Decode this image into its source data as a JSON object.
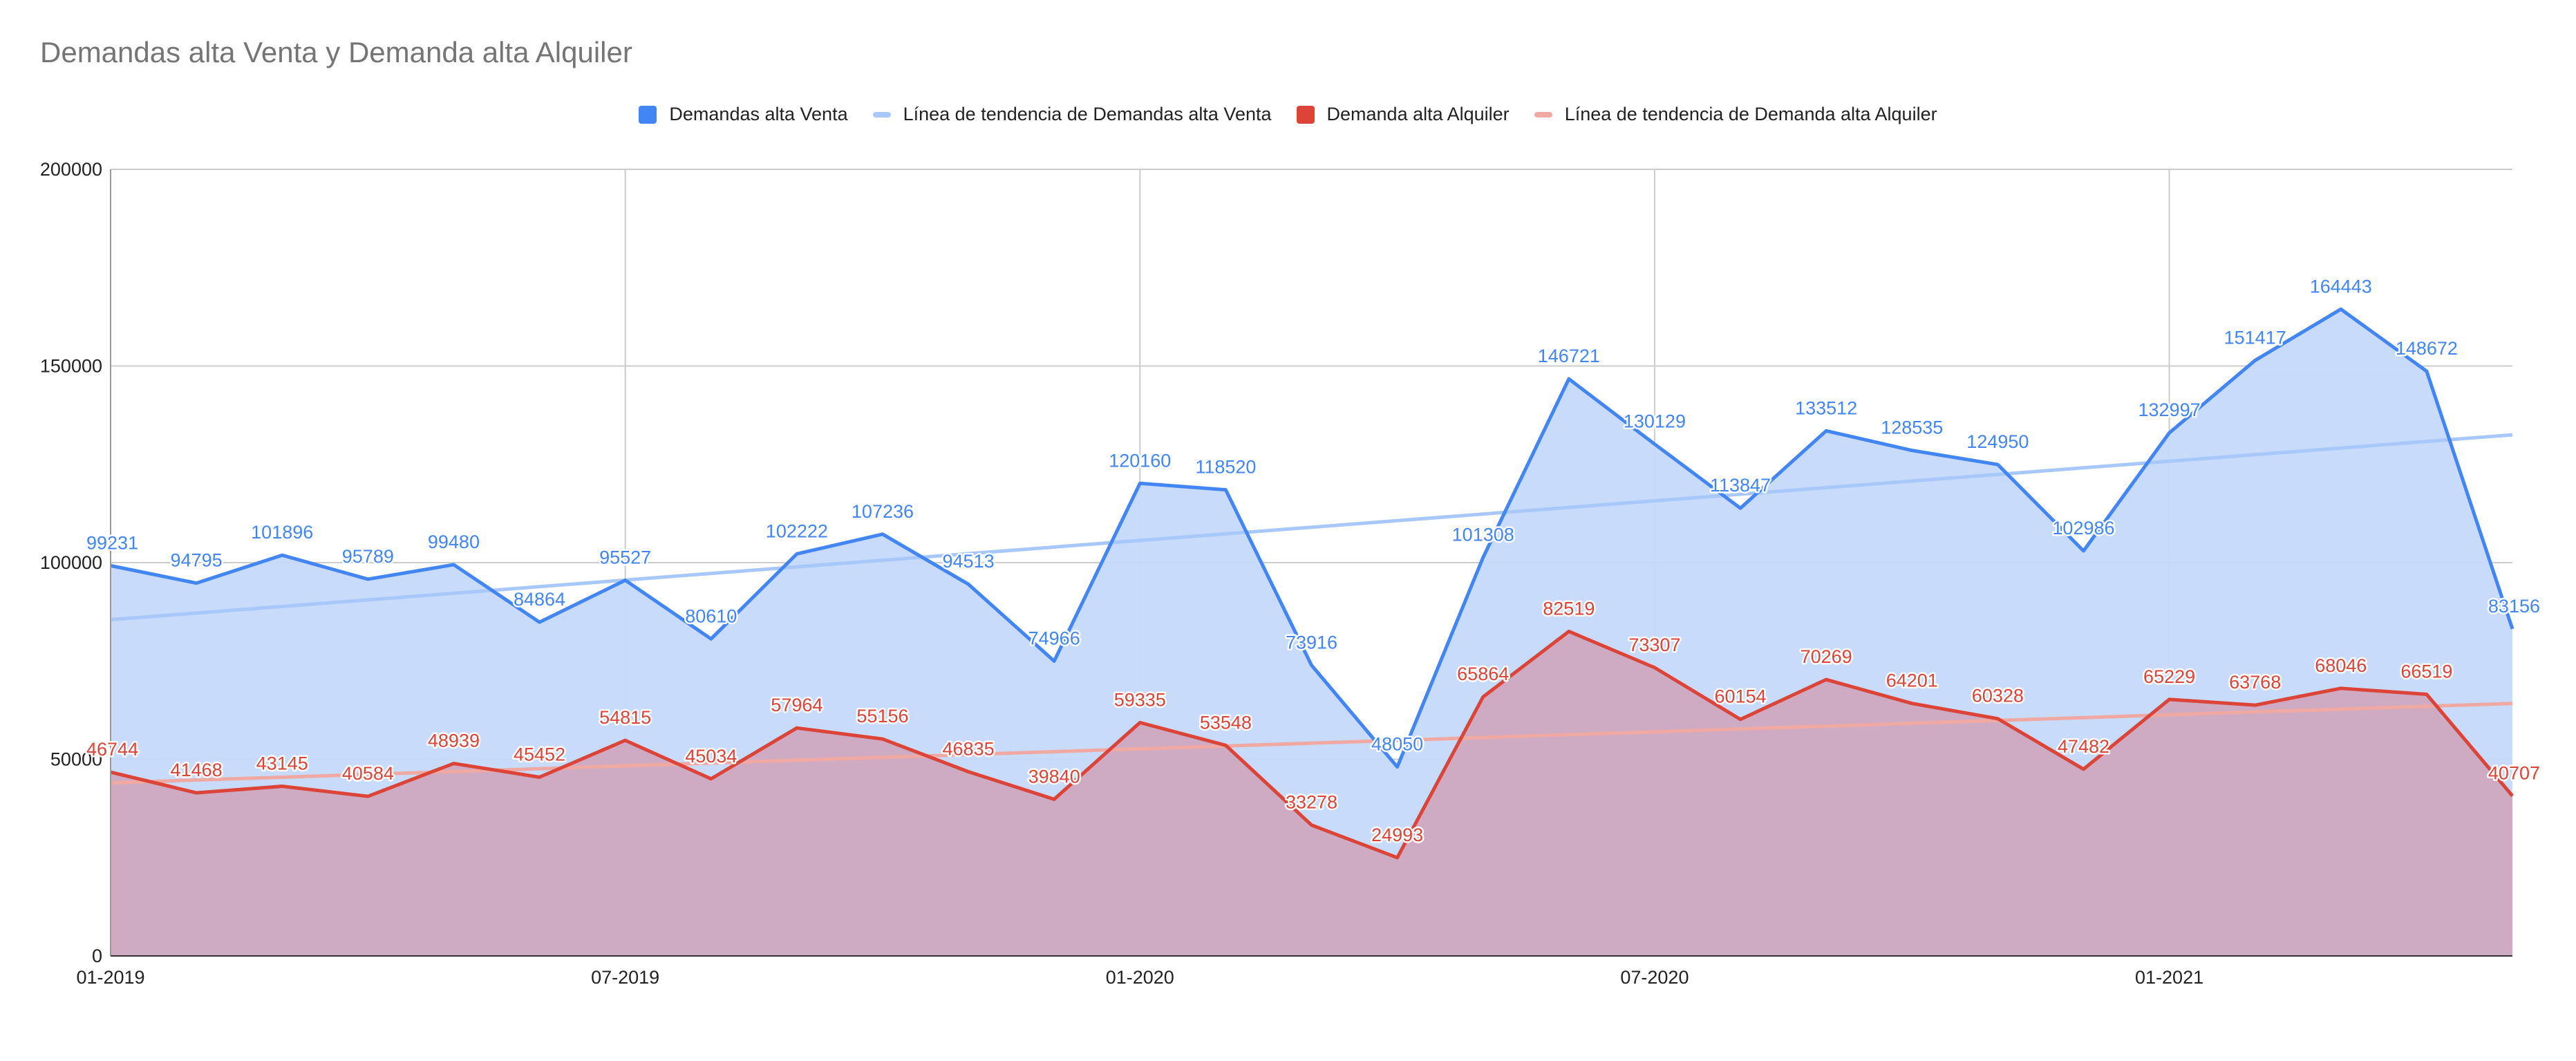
{
  "chart_data": {
    "type": "area",
    "title": "Demandas alta Venta y Demanda alta Alquiler",
    "legend_position": "top",
    "grid": true,
    "ylim": [
      0,
      200000
    ],
    "y_ticks": [
      "0",
      "50000",
      "100000",
      "150000",
      "200000"
    ],
    "y_tick_values": [
      0,
      50000,
      100000,
      150000,
      200000
    ],
    "x_ticks": [
      "01-2019",
      "07-2019",
      "01-2020",
      "07-2020",
      "01-2021"
    ],
    "x_tick_indices": [
      0,
      6,
      12,
      18,
      24
    ],
    "x": [
      "01-2019",
      "02-2019",
      "03-2019",
      "04-2019",
      "05-2019",
      "06-2019",
      "07-2019",
      "08-2019",
      "09-2019",
      "10-2019",
      "11-2019",
      "12-2019",
      "01-2020",
      "02-2020",
      "03-2020",
      "04-2020",
      "05-2020",
      "06-2020",
      "07-2020",
      "08-2020",
      "09-2020",
      "10-2020",
      "11-2020",
      "12-2020",
      "01-2021",
      "02-2021",
      "03-2021",
      "04-2021",
      "05-2021"
    ],
    "series": [
      {
        "name": "Demandas alta Venta",
        "color": "#4285f4",
        "fill": "#c6d9fb",
        "values": [
          99231,
          94795,
          101896,
          95789,
          99480,
          84864,
          95527,
          80610,
          102222,
          107236,
          94513,
          74966,
          120160,
          118520,
          73916,
          48050,
          101308,
          146721,
          130129,
          113847,
          133512,
          128535,
          124950,
          102986,
          132997,
          151417,
          164443,
          148672,
          83156
        ]
      },
      {
        "name": "Demanda alta Alquiler",
        "color": "#db4437",
        "fill": "#cfa8c0",
        "values": [
          46744,
          41468,
          43145,
          40584,
          48939,
          45452,
          54815,
          45034,
          57964,
          55156,
          46835,
          39840,
          59335,
          53548,
          33278,
          24993,
          65864,
          82519,
          73307,
          60154,
          70269,
          64201,
          60328,
          47482,
          65229,
          63768,
          68046,
          66519,
          40707
        ]
      }
    ],
    "trendlines": [
      {
        "name": "Línea de tendencia de Demandas alta Venta",
        "color": "#a8c7fa",
        "start": 85500,
        "end": 132500
      },
      {
        "name": "Línea de tendencia de Demanda alta Alquiler",
        "color": "#f0a9a2",
        "start": 44000,
        "end": 64200
      }
    ]
  }
}
